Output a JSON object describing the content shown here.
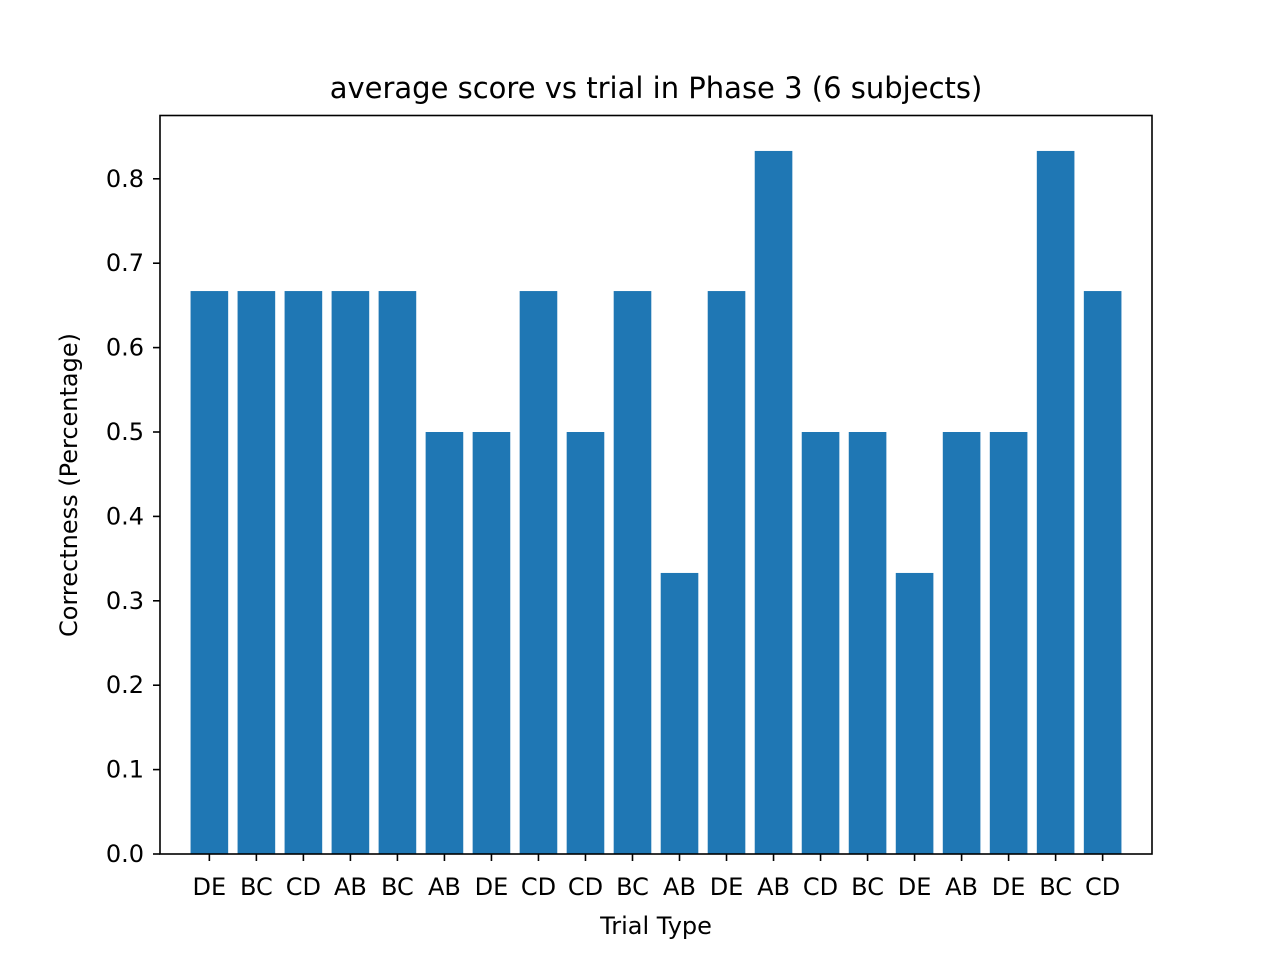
{
  "chart_data": {
    "type": "bar",
    "title": "average score vs trial in Phase 3 (6 subjects)",
    "xlabel": "Trial Type",
    "ylabel": "Correctness (Percentage)",
    "categories": [
      "DE",
      "BC",
      "CD",
      "AB",
      "BC",
      "AB",
      "DE",
      "CD",
      "CD",
      "BC",
      "AB",
      "DE",
      "AB",
      "CD",
      "BC",
      "DE",
      "AB",
      "DE",
      "BC",
      "CD"
    ],
    "values": [
      0.667,
      0.667,
      0.667,
      0.667,
      0.667,
      0.5,
      0.5,
      0.667,
      0.5,
      0.667,
      0.333,
      0.667,
      0.833,
      0.5,
      0.5,
      0.333,
      0.5,
      0.5,
      0.833,
      0.667
    ],
    "ylim": [
      0,
      0.875
    ],
    "yticks": [
      0.0,
      0.1,
      0.2,
      0.3,
      0.4,
      0.5,
      0.6,
      0.7,
      0.8
    ],
    "ytick_labels": [
      "0.0",
      "0.1",
      "0.2",
      "0.3",
      "0.4",
      "0.5",
      "0.6",
      "0.7",
      "0.8"
    ],
    "bar_color": "#1f77b4",
    "grid": false,
    "legend": "none"
  }
}
